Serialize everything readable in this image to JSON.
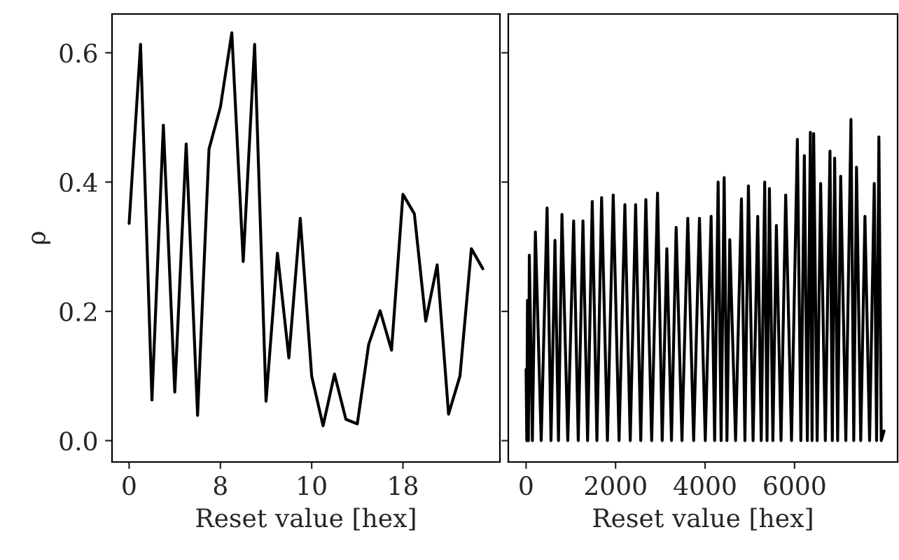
{
  "chart_data": [
    {
      "type": "line",
      "xlabel": "Reset value [hex]",
      "ylabel": "ρ",
      "grid": false,
      "marker": "none",
      "line_style": "solid",
      "categories": [
        "0",
        null,
        null,
        null,
        null,
        null,
        null,
        null,
        "8",
        null,
        null,
        null,
        null,
        null,
        null,
        null,
        "10",
        null,
        null,
        null,
        null,
        null,
        null,
        null,
        "18",
        null,
        null,
        null,
        null,
        null,
        null,
        null
      ],
      "series": [
        {
          "color": "#000000",
          "values": [
            0.336,
            0.613,
            0.063,
            0.488,
            0.075,
            0.459,
            0.039,
            0.451,
            0.516,
            0.631,
            0.277,
            0.613,
            0.061,
            0.29,
            0.128,
            0.344,
            0.1,
            0.023,
            0.103,
            0.033,
            0.026,
            0.149,
            0.201,
            0.14,
            0.381,
            0.351,
            0.185,
            0.272,
            0.041,
            0.1,
            0.297,
            0.266
          ]
        }
      ],
      "ylim": [
        -0.033,
        0.66
      ],
      "yticks": [
        {
          "value": 0,
          "label": "0.0"
        },
        0.2,
        0.4,
        0.6
      ]
    },
    {
      "type": "line",
      "xlabel": "Reset value [hex]",
      "grid": false,
      "marker": "none",
      "line_style": "solid",
      "tick_labels": "x",
      "x": [
        0,
        16,
        31,
        52,
        73,
        141,
        208,
        338,
        469,
        557,
        646,
        724,
        802,
        932,
        1063,
        1166,
        1271,
        1375,
        1479,
        1583,
        1688,
        1818,
        1948,
        2078,
        2208,
        2328,
        2448,
        2563,
        2677,
        2807,
        2938,
        3042,
        3146,
        3250,
        3354,
        3484,
        3614,
        3745,
        3875,
        4005,
        4135,
        4214,
        4292,
        4359,
        4427,
        4489,
        4552,
        4682,
        4813,
        4891,
        4969,
        5073,
        5177,
        5255,
        5333,
        5385,
        5438,
        5516,
        5594,
        5698,
        5802,
        5932,
        6063,
        6141,
        6219,
        6286,
        6354,
        6391,
        6427,
        6505,
        6583,
        6688,
        6792,
        6844,
        6896,
        6963,
        7031,
        7146,
        7261,
        7323,
        7385,
        7479,
        7573,
        7677,
        7781,
        7833,
        7885,
        7938,
        8000
      ],
      "series": [
        {
          "color": "#000000",
          "values": [
            0.11,
            0,
            0.217,
            0,
            0.287,
            0,
            0.323,
            0,
            0.36,
            0,
            0.31,
            0,
            0.35,
            0,
            0.34,
            0,
            0.34,
            0,
            0.37,
            0,
            0.376,
            0,
            0.38,
            0,
            0.365,
            0,
            0.365,
            0,
            0.373,
            0,
            0.383,
            0,
            0.297,
            0,
            0.33,
            0,
            0.344,
            0,
            0.344,
            0,
            0.347,
            0,
            0.4,
            0,
            0.407,
            0,
            0.311,
            0,
            0.374,
            0,
            0.394,
            0,
            0.347,
            0,
            0.4,
            0,
            0.39,
            0,
            0.333,
            0,
            0.38,
            0,
            0.466,
            0,
            0.441,
            0,
            0.477,
            0,
            0.475,
            0,
            0.398,
            0,
            0.448,
            0,
            0.437,
            0,
            0.409,
            0,
            0.497,
            0,
            0.423,
            0,
            0.347,
            0,
            0.398,
            0,
            0.47,
            0,
            0.015
          ]
        }
      ],
      "xlim": [
        -397,
        8303
      ],
      "ylim": [
        -0.033,
        0.66
      ],
      "xticks": [
        0,
        2000,
        4000,
        6000
      ],
      "yticks": [
        {
          "value": 0,
          "label": null
        },
        {
          "value": 0.2,
          "label": null
        },
        {
          "value": 0.4,
          "label": null
        },
        {
          "value": 0.6,
          "label": null
        }
      ]
    }
  ]
}
